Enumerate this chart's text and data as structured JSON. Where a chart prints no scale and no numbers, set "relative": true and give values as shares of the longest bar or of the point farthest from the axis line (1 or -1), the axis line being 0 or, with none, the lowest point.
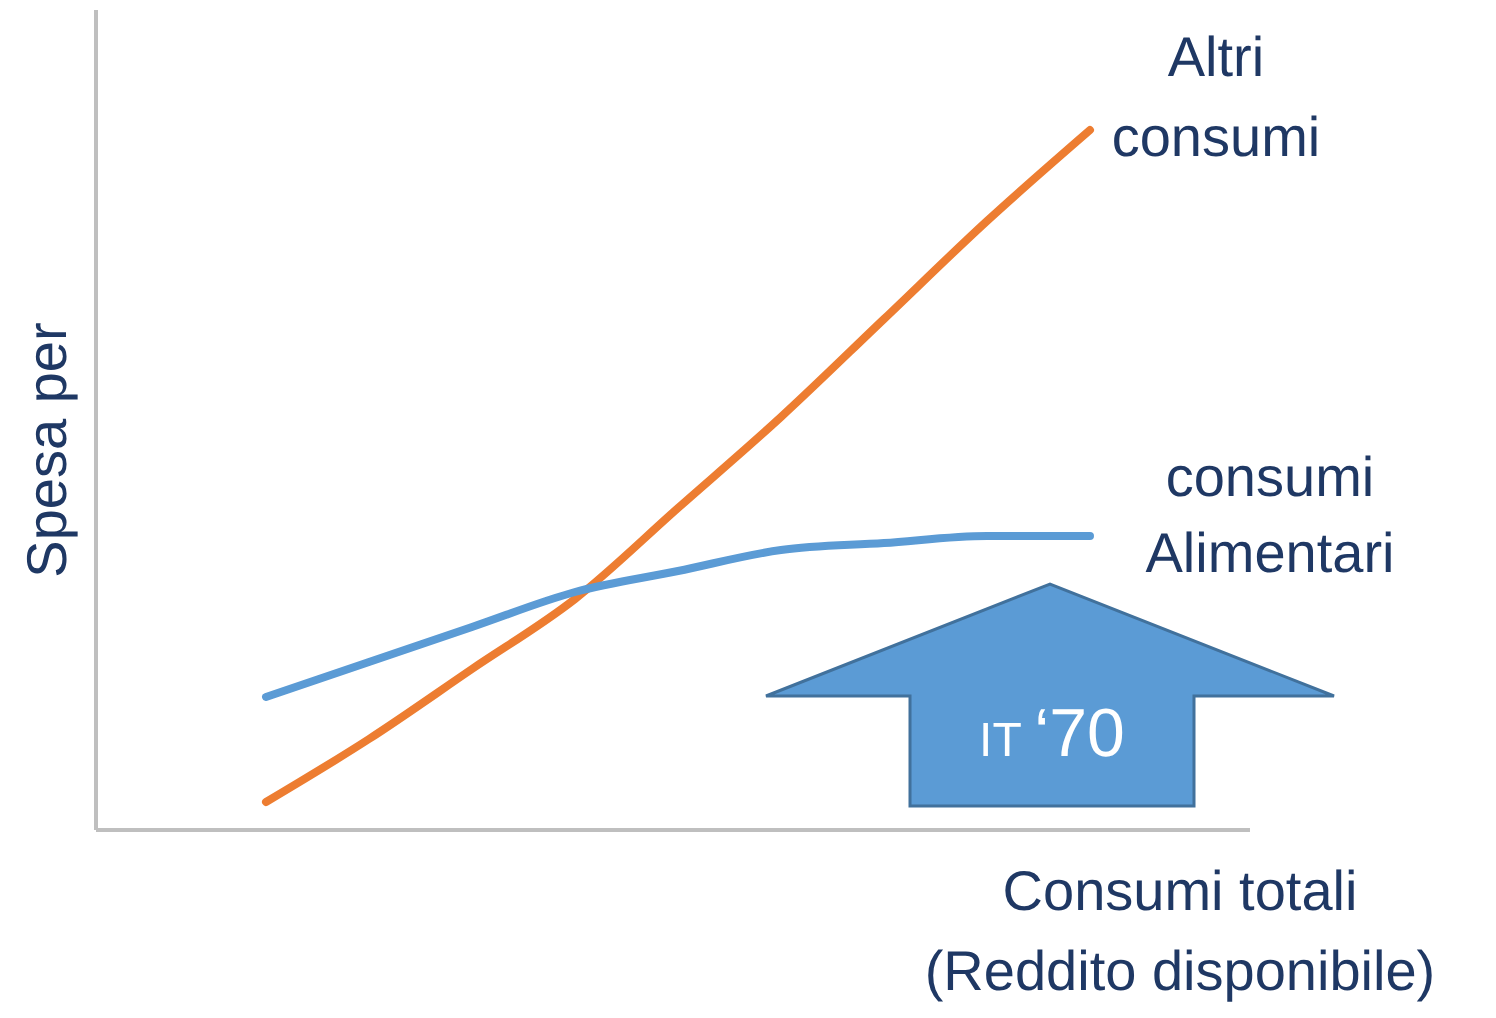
{
  "chart_data": {
    "type": "line",
    "relative": true,
    "ylabel": "Spesa per",
    "xlabel": "Consumi totali\n(Reddito disponibile)",
    "categories": [
      null,
      null,
      null,
      null,
      null,
      null,
      null,
      null,
      null
    ],
    "series": [
      {
        "name": "Altri consumi",
        "color": "#ed7d31",
        "values": [
          0.04,
          0.13,
          0.23,
          0.33,
          0.46,
          0.59,
          0.73,
          0.87,
          1
        ]
      },
      {
        "name": "consumi Alimentari",
        "color": "#5b9bd5",
        "values": [
          0.19,
          0.24,
          0.29,
          0.34,
          0.37,
          0.4,
          0.41,
          0.42,
          0.42
        ]
      }
    ],
    "annotations": [
      "IT ‘70"
    ],
    "marker": "none",
    "line_style": "solid"
  }
}
